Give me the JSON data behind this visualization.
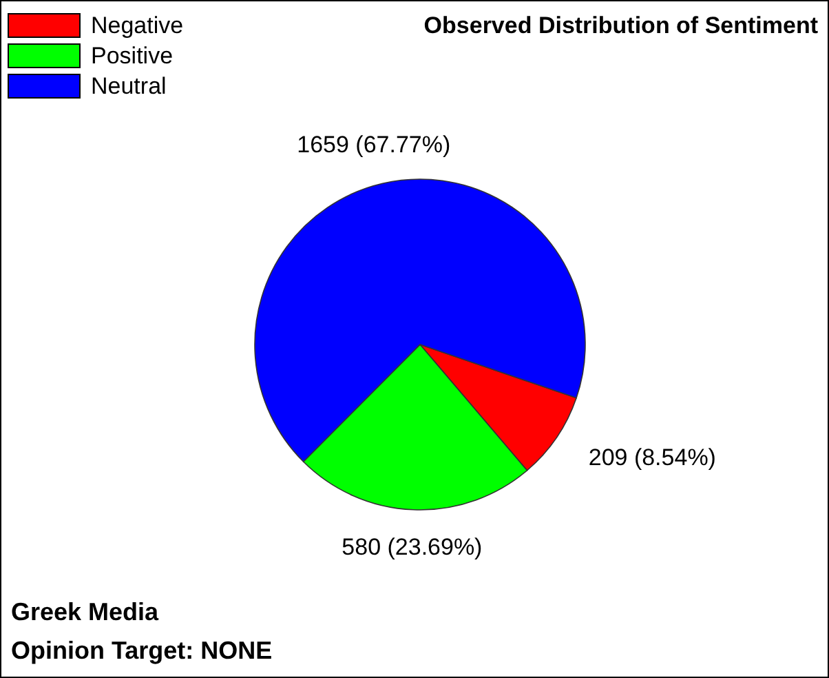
{
  "chart_data": {
    "type": "pie",
    "title": "Observed Distribution of Sentiment",
    "categories": [
      "Negative",
      "Positive",
      "Neutral"
    ],
    "values": [
      209,
      580,
      1659
    ],
    "colors": [
      "#ff0000",
      "#00ff00",
      "#0000ff"
    ],
    "value_labels": [
      "209 (8.54%)",
      "580 (23.69%)",
      "1659 (67.77%)"
    ],
    "legend": "top left",
    "annotations": [
      "Greek Media",
      "Opinion Target: NONE"
    ]
  }
}
